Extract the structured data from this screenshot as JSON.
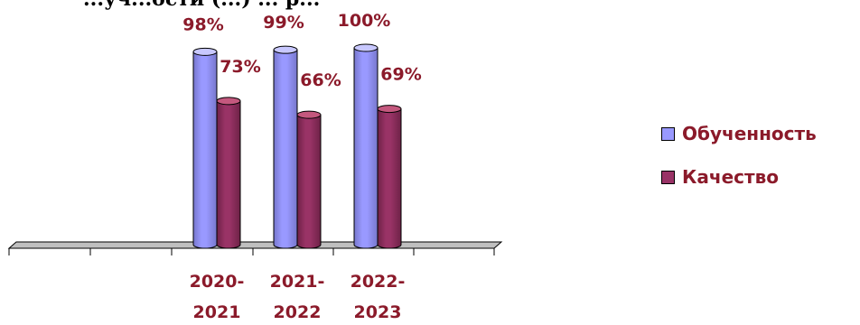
{
  "title_fragment": "...уч...ости (...) ... р...",
  "chart_data": {
    "type": "bar",
    "categories": [
      [
        "2020-",
        "2021"
      ],
      [
        "2021-",
        "2022"
      ],
      [
        "2022-",
        "2023"
      ]
    ],
    "series": [
      {
        "name": "Обученность",
        "values": [
          98,
          99,
          100
        ],
        "labels": [
          "98%",
          "99%",
          "100%"
        ],
        "color": "#9999ff"
      },
      {
        "name": "Качество",
        "values": [
          73,
          66,
          69
        ],
        "labels": [
          "73%",
          "66%",
          "69%"
        ],
        "color": "#993366"
      }
    ],
    "ylim": [
      0,
      100
    ],
    "legend_position": "right",
    "grid": false,
    "label_color": "#8b1a2a"
  }
}
